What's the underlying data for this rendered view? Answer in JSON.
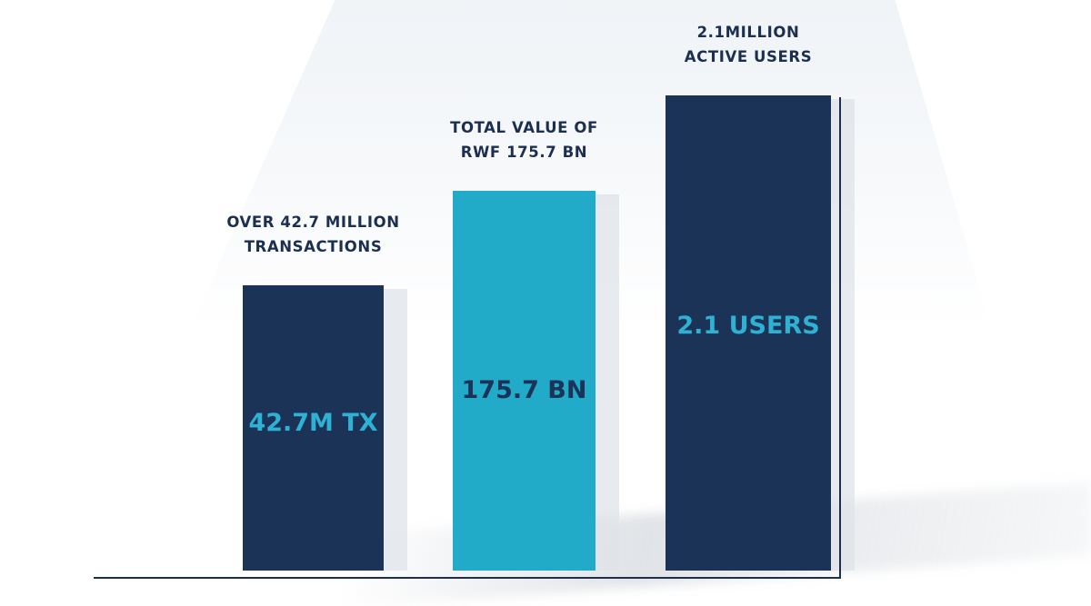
{
  "chart_data": {
    "type": "bar",
    "title": "",
    "xlabel": "",
    "ylabel": "",
    "categories": [
      "OVER 42.7 MILLION TRANSACTIONS",
      "TOTAL VALUE OF RWF 175.7 BN",
      "2.1MILLION ACTIVE USERS"
    ],
    "label_lines": [
      [
        "OVER 42.7 MILLION",
        "TRANSACTIONS"
      ],
      [
        "TOTAL VALUE OF",
        "RWF 175.7 BN"
      ],
      [
        "2.1MILLION",
        "ACTIVE USERS"
      ]
    ],
    "value_labels": [
      "42.7M TX",
      "175.7 BN",
      "2.1 USERS"
    ],
    "relative_heights": [
      0.6,
      0.8,
      1.0
    ],
    "bar_colors": [
      "#1b3356",
      "#21abc9",
      "#1b3356"
    ],
    "value_text_colors": [
      "#2fb1d3",
      "#1b3356",
      "#2fb1d3"
    ],
    "axis_color": "#1c2f4f",
    "grid": false,
    "legend": "none"
  }
}
